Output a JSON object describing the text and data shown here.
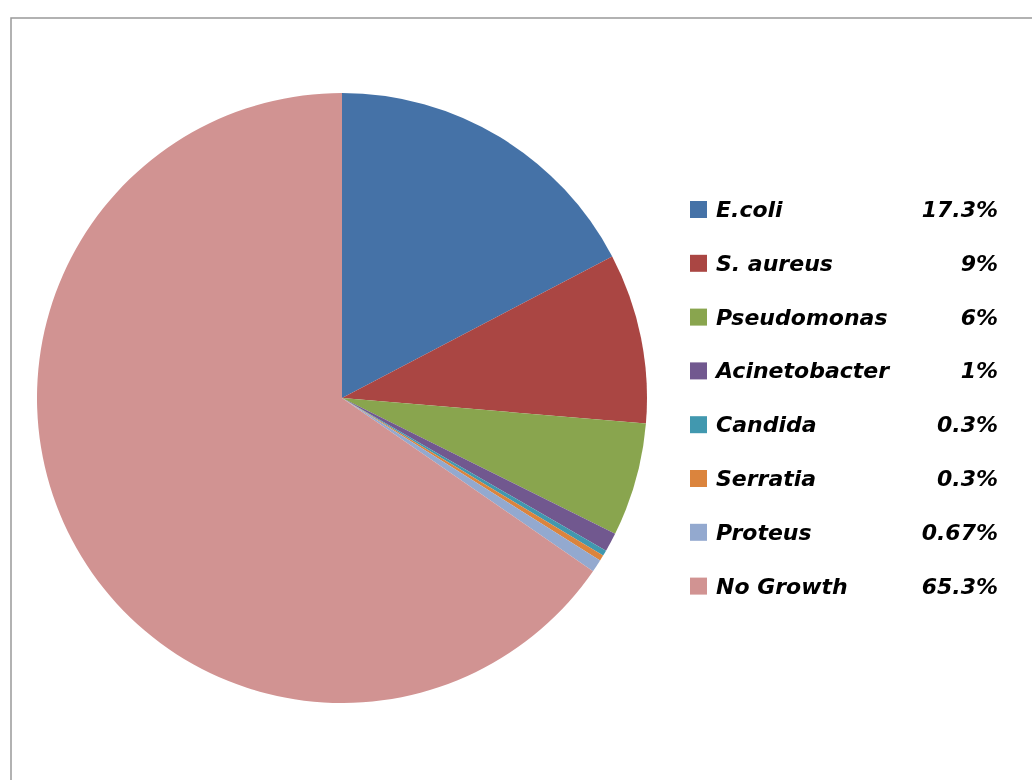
{
  "chart_data": {
    "type": "pie",
    "categories": [
      "E.coli",
      "S. aureus",
      "Pseudomonas",
      "Acinetobacter",
      "Candida",
      "Serratia",
      "Proteus",
      "No Growth"
    ],
    "values": [
      17.3,
      9,
      6,
      1,
      0.3,
      0.3,
      0.67,
      65.3
    ],
    "value_labels": [
      "17.3%",
      "9%",
      "6%",
      "1%",
      "0.3%",
      "0.3%",
      "0.67%",
      "65.3%"
    ],
    "colors": [
      "#4572a7",
      "#aa4643",
      "#89a54e",
      "#71588f",
      "#4198af",
      "#db843d",
      "#93a9cf",
      "#d19392"
    ],
    "legend": "right"
  }
}
